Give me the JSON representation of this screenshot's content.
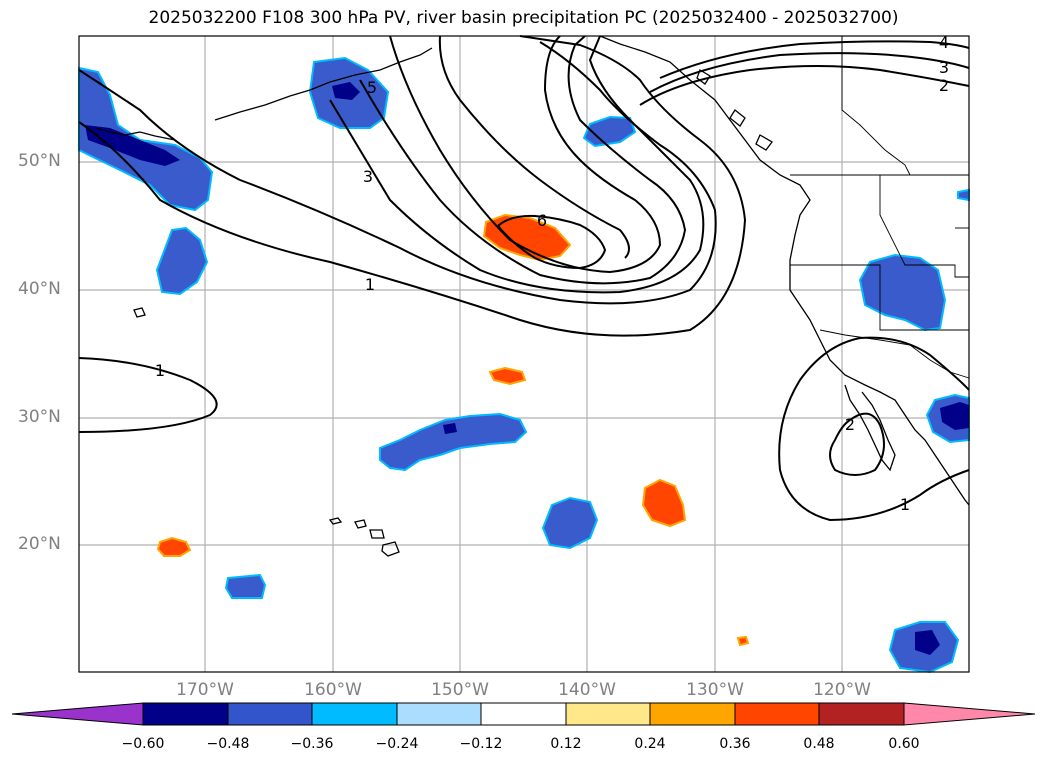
{
  "title": "2025032200 F108 300 hPa PV, river basin precipitation PC (2025032400 - 2025032700)",
  "lat_labels": [
    "50°N",
    "40°N",
    "30°N",
    "20°N"
  ],
  "lon_labels": [
    "170°W",
    "160°W",
    "150°W",
    "140°W",
    "130°W",
    "120°W"
  ],
  "contour_labels": [
    "4",
    "3",
    "2",
    "5",
    "3",
    "6",
    "1",
    "1",
    "2",
    "1"
  ],
  "colorbar": {
    "ticks": [
      "−0.60",
      "−0.48",
      "−0.36",
      "−0.24",
      "−0.12",
      "0.12",
      "0.24",
      "0.36",
      "0.48",
      "0.60"
    ],
    "colors": [
      "#9933cc",
      "#000088",
      "#3355cc",
      "#00bbff",
      "#aaddff",
      "#ffffff",
      "#ffe88a",
      "#ffa500",
      "#ff4500",
      "#b22222",
      "#ff88aa"
    ]
  },
  "colors": {
    "negative_fill": "#3a5bcc",
    "negative_edge": "#00bbff",
    "strong_negative": "#000088",
    "positive_fill": "#ff4500",
    "positive_edge": "#ffa500",
    "grid": "#b0b0b0",
    "coast": "#000000"
  }
}
